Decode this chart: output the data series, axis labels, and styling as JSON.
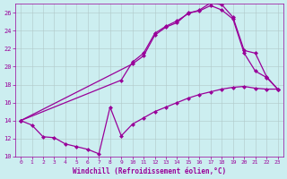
{
  "xlabel": "Windchill (Refroidissement éolien,°C)",
  "bg_color": "#cceef0",
  "line_color": "#990099",
  "grid_color": "#b0c8c8",
  "xlim": [
    -0.5,
    23.5
  ],
  "ylim": [
    10,
    27
  ],
  "xticks": [
    0,
    1,
    2,
    3,
    4,
    5,
    6,
    7,
    8,
    9,
    10,
    11,
    12,
    13,
    14,
    15,
    16,
    17,
    18,
    19,
    20,
    21,
    22,
    23
  ],
  "yticks": [
    10,
    12,
    14,
    16,
    18,
    20,
    22,
    24,
    26
  ],
  "series1": [
    [
      0,
      14
    ],
    [
      1,
      13.5
    ],
    [
      2,
      12.2
    ],
    [
      3,
      12.1
    ],
    [
      4,
      11.4
    ],
    [
      5,
      11.1
    ],
    [
      6,
      10.8
    ],
    [
      7,
      10.3
    ],
    [
      8,
      15.5
    ],
    [
      9,
      12.3
    ],
    [
      10,
      13.6
    ],
    [
      11,
      14.3
    ],
    [
      12,
      15.0
    ],
    [
      13,
      15.5
    ],
    [
      14,
      16.0
    ],
    [
      15,
      16.5
    ],
    [
      16,
      16.9
    ],
    [
      17,
      17.2
    ],
    [
      18,
      17.5
    ],
    [
      19,
      17.7
    ],
    [
      20,
      17.8
    ],
    [
      21,
      17.6
    ],
    [
      22,
      17.5
    ],
    [
      23,
      17.5
    ]
  ],
  "series2": [
    [
      0,
      14
    ],
    [
      10,
      20.3
    ],
    [
      11,
      21.2
    ],
    [
      12,
      23.5
    ],
    [
      13,
      24.4
    ],
    [
      14,
      24.9
    ],
    [
      15,
      26.0
    ],
    [
      16,
      26.2
    ],
    [
      17,
      26.8
    ],
    [
      18,
      26.3
    ],
    [
      19,
      25.3
    ],
    [
      20,
      21.5
    ],
    [
      21,
      19.5
    ],
    [
      22,
      18.8
    ],
    [
      23,
      17.5
    ]
  ],
  "series3": [
    [
      0,
      14
    ],
    [
      9,
      18.5
    ],
    [
      10,
      20.5
    ],
    [
      11,
      21.5
    ],
    [
      12,
      23.7
    ],
    [
      13,
      24.5
    ],
    [
      14,
      25.1
    ],
    [
      15,
      25.9
    ],
    [
      16,
      26.3
    ],
    [
      17,
      27.1
    ],
    [
      18,
      26.9
    ],
    [
      19,
      25.5
    ],
    [
      20,
      21.8
    ],
    [
      21,
      21.5
    ],
    [
      22,
      18.9
    ],
    [
      23,
      17.5
    ]
  ]
}
